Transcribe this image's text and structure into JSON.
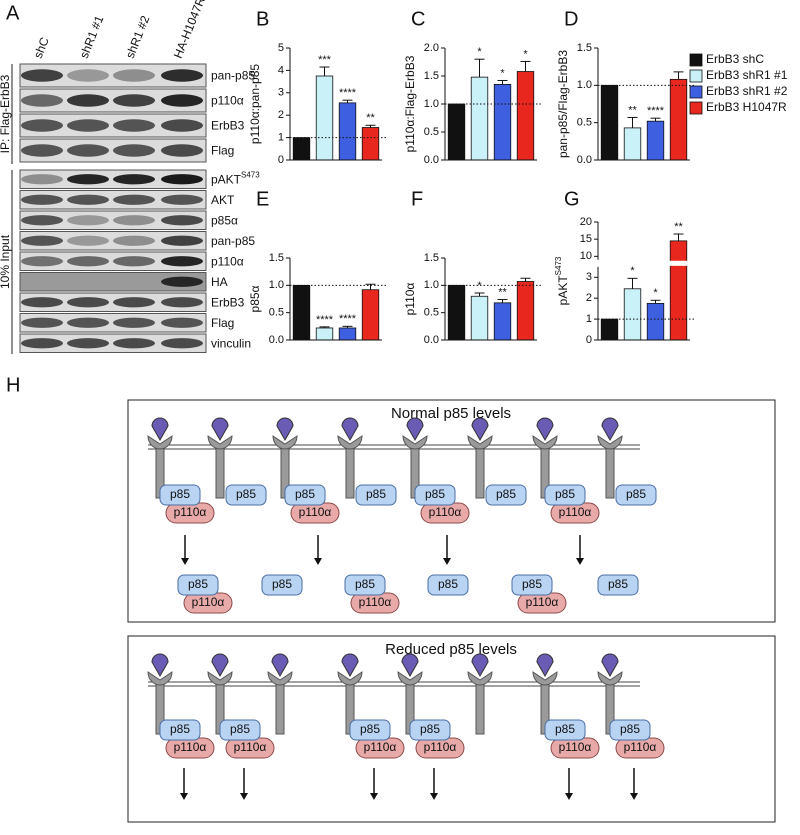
{
  "panel_a": {
    "letter": "A",
    "lanes": [
      "shC",
      "shR1 #1",
      "shR1 #2",
      "HA-H1047R"
    ],
    "ip_label": "IP: Flag-ErbB3",
    "input_label": "10% Input",
    "ip_rows": [
      "pan-p85",
      "p110α",
      "ErbB3",
      "Flag"
    ],
    "input_rows": [
      {
        "text": "pAKT",
        "sup": "S473"
      },
      "AKT",
      "p85α",
      "pan-p85",
      "p110α",
      "HA",
      "ErbB3",
      "Flag",
      "vinculin"
    ]
  },
  "legend": {
    "series": [
      {
        "name": "ErbB3 shC",
        "color": "#111111"
      },
      {
        "name": "ErbB3 shR1 #1",
        "color": "#c9f1f7"
      },
      {
        "name": "ErbB3 shR1 #2",
        "color": "#3e5fe0"
      },
      {
        "name": "ErbB3 H1047R",
        "color": "#e8281e"
      }
    ]
  },
  "chart_data": [
    {
      "type": "bar",
      "panel": "B",
      "ylabel": "p110α:pan-p85",
      "values": [
        1,
        3.75,
        2.55,
        1.45
      ],
      "errors": [
        null,
        0.4,
        0.12,
        0.1
      ],
      "annotations": [
        null,
        "***",
        "****",
        "**"
      ],
      "ylim": [
        0,
        5
      ],
      "yticks": [
        0,
        1,
        2,
        3,
        4,
        5
      ],
      "reference_line": 1
    },
    {
      "type": "bar",
      "panel": "C",
      "ylabel": "p110α:Flag-ErbB3",
      "values": [
        1,
        1.48,
        1.35,
        1.58
      ],
      "errors": [
        null,
        0.32,
        0.07,
        0.18
      ],
      "annotations": [
        null,
        "*",
        "*",
        "*"
      ],
      "ylim": [
        0,
        2
      ],
      "yticks": [
        {
          "value": 0,
          "label": "0.0"
        },
        0.5,
        {
          "value": 1,
          "label": "1.0"
        },
        1.5,
        {
          "value": 2,
          "label": "2.0"
        }
      ],
      "reference_line": 1
    },
    {
      "type": "bar",
      "panel": "D",
      "ylabel": "pan-p85/Flag-ErbB3",
      "values": [
        1,
        0.43,
        0.52,
        1.08
      ],
      "errors": [
        null,
        0.14,
        0.04,
        0.1
      ],
      "annotations": [
        null,
        "**",
        "****",
        null
      ],
      "ylim": [
        0,
        1.5
      ],
      "yticks": [
        {
          "value": 0,
          "label": "0.0"
        },
        0.5,
        {
          "value": 1,
          "label": "1.0"
        },
        1.5
      ],
      "reference_line": 1
    },
    {
      "type": "bar",
      "panel": "E",
      "ylabel": "p85α",
      "values": [
        1,
        0.22,
        0.22,
        0.92
      ],
      "errors": [
        null,
        0.02,
        0.03,
        0.1
      ],
      "annotations": [
        null,
        "****",
        "****",
        null
      ],
      "ylim": [
        0,
        1.5
      ],
      "yticks": [
        {
          "value": 0,
          "label": "0.0"
        },
        0.5,
        {
          "value": 1,
          "label": "1.0"
        },
        1.5
      ],
      "reference_line": 1
    },
    {
      "type": "bar",
      "panel": "F",
      "ylabel": "p110α",
      "values": [
        1,
        0.8,
        0.68,
        1.07
      ],
      "errors": [
        null,
        0.06,
        0.06,
        0.06
      ],
      "annotations": [
        null,
        "*",
        "**",
        null
      ],
      "ylim": [
        0,
        1.5
      ],
      "yticks": [
        {
          "value": 0,
          "label": "0.0"
        },
        0.5,
        {
          "value": 1,
          "label": "1.0"
        },
        1.5
      ],
      "reference_line": 1
    },
    {
      "type": "bar",
      "panel": "G",
      "ylabel": "pAKT",
      "ylabel_sup": "S473",
      "values": [
        1,
        2.45,
        1.75,
        14.5
      ],
      "errors": [
        null,
        0.5,
        0.15,
        2
      ],
      "annotations": [
        null,
        "*",
        "*",
        "**"
      ],
      "ylim": [
        0,
        20
      ],
      "axis_break": [
        3.5,
        9
      ],
      "yticks": [
        0,
        1,
        2,
        3,
        10,
        15,
        20
      ],
      "reference_line": 1
    }
  ],
  "panel_h": {
    "letter": "H",
    "normal_title": "Normal p85 levels",
    "reduced_title": "Reduced p85 levels",
    "p85": "p85",
    "p110": "p110α"
  }
}
